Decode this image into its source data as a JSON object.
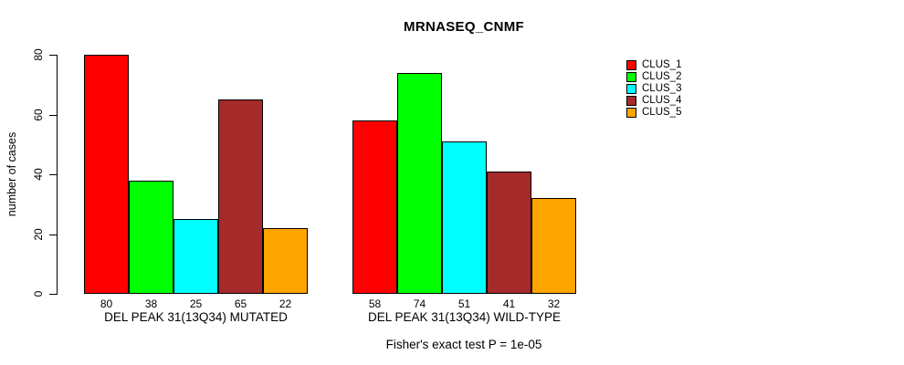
{
  "figure": {
    "background": "#ffffff"
  },
  "chart_data": {
    "type": "bar",
    "title": "MRNASEQ_CNMF",
    "ylabel": "number of cases",
    "xlabel": "",
    "ylim": [
      0,
      80
    ],
    "yticks": [
      0,
      20,
      40,
      60,
      80
    ],
    "grid": false,
    "background": "#ffffff",
    "bar_border_color": "#000000",
    "legend_position": "top-right",
    "value_labels_shown": true,
    "categories": [
      "DEL PEAK 31(13Q34) MUTATED",
      "DEL PEAK 31(13Q34) WILD-TYPE"
    ],
    "series": [
      {
        "name": "CLUS_1",
        "color": "#ff0000",
        "values": [
          80,
          58
        ]
      },
      {
        "name": "CLUS_2",
        "color": "#00ff00",
        "values": [
          38,
          74
        ]
      },
      {
        "name": "CLUS_3",
        "color": "#00ffff",
        "values": [
          25,
          51
        ]
      },
      {
        "name": "CLUS_4",
        "color": "#a52a2a",
        "values": [
          65,
          41
        ]
      },
      {
        "name": "CLUS_5",
        "color": "#ffa500",
        "values": [
          22,
          32
        ]
      }
    ],
    "annotation": "Fisher's exact test P = 1e-05"
  }
}
